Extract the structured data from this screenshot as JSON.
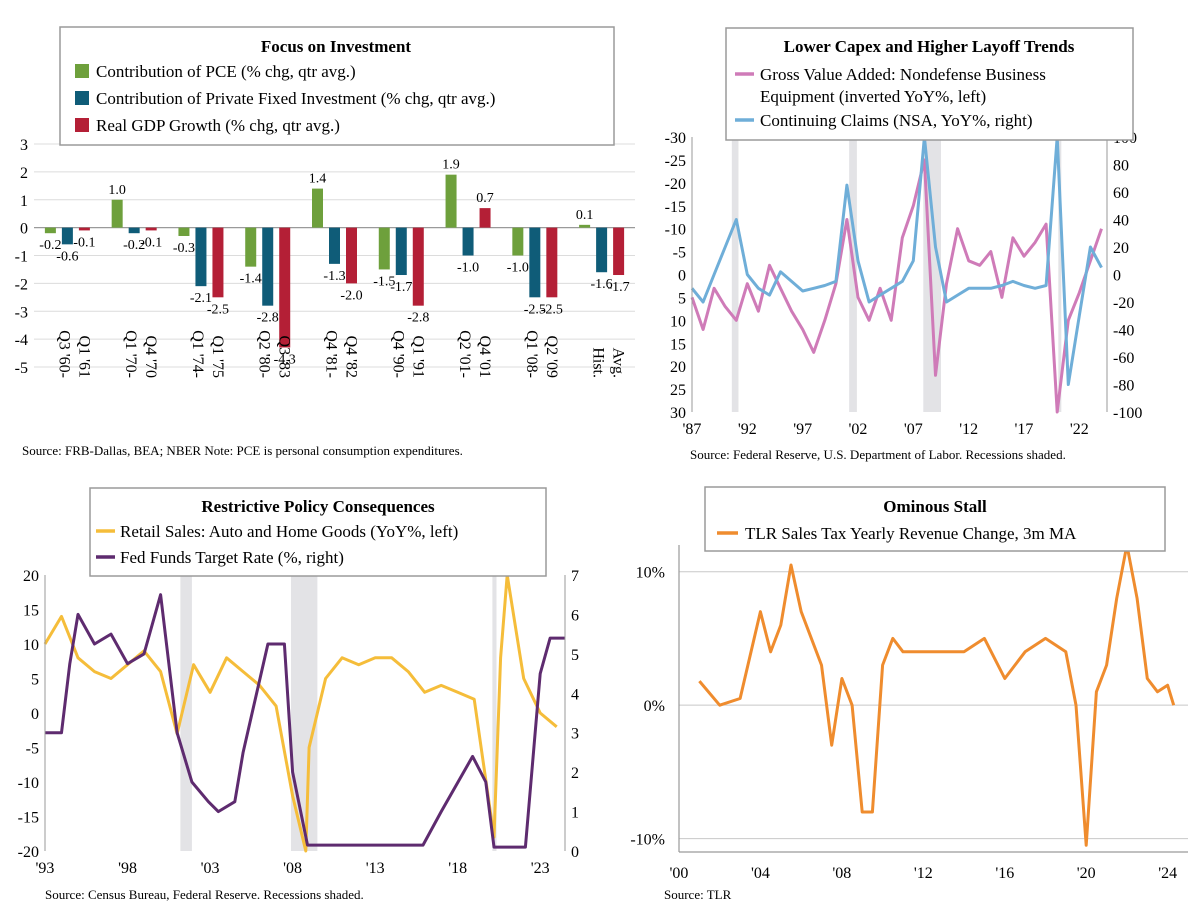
{
  "chart_data": [
    {
      "type": "bar",
      "title": "Focus on Investment",
      "series": [
        {
          "name": "Contribution of PCE (% chg, qtr avg.)",
          "color": "#6ea03c",
          "values": [
            -0.2,
            1.0,
            -0.3,
            -1.4,
            1.4,
            -1.5,
            1.9,
            -1.0,
            0.1
          ]
        },
        {
          "name": "Contribution of Private Fixed Investment (% chg, qtr avg.)",
          "color": "#0f5c78",
          "values": [
            -0.6,
            -0.2,
            -2.1,
            -2.8,
            -1.3,
            -1.7,
            -1.0,
            -2.5,
            -1.6
          ]
        },
        {
          "name": "Real GDP Growth (% chg, qtr avg.)",
          "color": "#b41f36",
          "values": [
            -0.1,
            -0.1,
            -2.5,
            -4.3,
            -2.0,
            -2.8,
            0.7,
            -2.5,
            -1.7
          ]
        }
      ],
      "categories": [
        [
          "Q3 '60-",
          "Q1 '61"
        ],
        [
          "Q1 '70-",
          "Q4 '70"
        ],
        [
          "Q1 '74-",
          "Q1 '75"
        ],
        [
          "Q2 '80-",
          "Q3 '83"
        ],
        [
          "Q4 '81-",
          "Q4 '82"
        ],
        [
          "Q4 '90-",
          "Q1 '91"
        ],
        [
          "Q2 '01-",
          "Q4 '01"
        ],
        [
          "Q1 '08-",
          "Q2 '09"
        ],
        [
          "Hist.",
          "Avg."
        ]
      ],
      "y_ticks": [
        "3",
        "2",
        "1",
        "0",
        "-1",
        "-2",
        "-3",
        "-4",
        "-5"
      ],
      "ylim": [
        -5,
        3
      ],
      "legend": "top",
      "source": "Source: FRB-Dallas, BEA; NBER Note: PCE is personal consumption expenditures."
    },
    {
      "type": "line",
      "title": "Lower Capex and Higher Layoff Trends",
      "series": [
        {
          "name": "Gross Value Added: Nondefense Business Equipment (inverted YoY%, left)",
          "legend_lines": [
            "Gross Value Added: Nondefense Business",
            "Equipment (inverted YoY%, left)"
          ],
          "color": "#cf7bb8",
          "axis": "left",
          "points": [
            [
              1987,
              5
            ],
            [
              1988,
              12
            ],
            [
              1989,
              3
            ],
            [
              1990,
              7
            ],
            [
              1991,
              10
            ],
            [
              1992,
              2
            ],
            [
              1993,
              8
            ],
            [
              1994,
              -2
            ],
            [
              1995,
              3
            ],
            [
              1996,
              8
            ],
            [
              1997,
              12
            ],
            [
              1998,
              17
            ],
            [
              1999,
              10
            ],
            [
              2000,
              2
            ],
            [
              2001,
              -12
            ],
            [
              2002,
              5
            ],
            [
              2003,
              10
            ],
            [
              2004,
              3
            ],
            [
              2005,
              10
            ],
            [
              2006,
              -8
            ],
            [
              2007,
              -15
            ],
            [
              2008,
              -25
            ],
            [
              2009,
              22
            ],
            [
              2010,
              2
            ],
            [
              2011,
              -10
            ],
            [
              2012,
              -3
            ],
            [
              2013,
              -2
            ],
            [
              2014,
              -5
            ],
            [
              2015,
              5
            ],
            [
              2016,
              -8
            ],
            [
              2017,
              -4
            ],
            [
              2018,
              -7
            ],
            [
              2019,
              -11
            ],
            [
              2020,
              30
            ],
            [
              2021,
              10
            ],
            [
              2022,
              4
            ],
            [
              2023,
              -3
            ],
            [
              2024,
              -10
            ]
          ]
        },
        {
          "name": "Continuing Claims (NSA, YoY%, right)",
          "color": "#6faed8",
          "axis": "right",
          "points": [
            [
              1987,
              -10
            ],
            [
              1988,
              -20
            ],
            [
              1989,
              0
            ],
            [
              1990,
              20
            ],
            [
              1991,
              40
            ],
            [
              1992,
              0
            ],
            [
              1993,
              -10
            ],
            [
              1994,
              -15
            ],
            [
              1995,
              2
            ],
            [
              1996,
              -5
            ],
            [
              1997,
              -12
            ],
            [
              1998,
              -10
            ],
            [
              1999,
              -8
            ],
            [
              2000,
              -5
            ],
            [
              2001,
              65
            ],
            [
              2002,
              10
            ],
            [
              2003,
              -20
            ],
            [
              2004,
              -15
            ],
            [
              2005,
              -10
            ],
            [
              2006,
              -5
            ],
            [
              2007,
              10
            ],
            [
              2008,
              100
            ],
            [
              2009,
              20
            ],
            [
              2010,
              -20
            ],
            [
              2011,
              -15
            ],
            [
              2012,
              -10
            ],
            [
              2013,
              -10
            ],
            [
              2014,
              -10
            ],
            [
              2015,
              -8
            ],
            [
              2016,
              -5
            ],
            [
              2017,
              -8
            ],
            [
              2018,
              -10
            ],
            [
              2019,
              -8
            ],
            [
              2020,
              200
            ],
            [
              2021,
              -80
            ],
            [
              2022,
              -30
            ],
            [
              2023,
              20
            ],
            [
              2024,
              5
            ]
          ]
        }
      ],
      "left_ticks": [
        "-30",
        "-25",
        "-20",
        "-15",
        "-10",
        "-5",
        "0",
        "5",
        "10",
        "15",
        "20",
        "25",
        "30"
      ],
      "right_ticks": [
        "100",
        "80",
        "60",
        "40",
        "20",
        "0",
        "-20",
        "-40",
        "-60",
        "-80",
        "-100"
      ],
      "x_ticks": [
        "'87",
        "'92",
        "'97",
        "'02",
        "'07",
        "'12",
        "'17",
        "'22"
      ],
      "ylim_left": [
        -30,
        30
      ],
      "ylim_right": [
        -100,
        100
      ],
      "left_axis_inverted": true,
      "xlim": [
        1987,
        2024.5
      ],
      "recessions": [
        [
          1990.6,
          1991.2
        ],
        [
          2001.2,
          2001.9
        ],
        [
          2007.9,
          2009.5
        ],
        [
          2020.1,
          2020.35
        ]
      ],
      "legend": "top",
      "source": "Source: Federal Reserve, U.S. Department of Labor. Recessions shaded."
    },
    {
      "type": "line",
      "title": "Restrictive Policy Consequences",
      "series": [
        {
          "name": "Retail Sales: Auto and Home Goods (YoY%, left)",
          "color": "#f5bd3a",
          "axis": "left",
          "points": [
            [
              1993,
              10
            ],
            [
              1994,
              14
            ],
            [
              1995,
              8
            ],
            [
              1996,
              6
            ],
            [
              1997,
              5
            ],
            [
              1998,
              7
            ],
            [
              1999,
              9
            ],
            [
              2000,
              6
            ],
            [
              2001,
              -3
            ],
            [
              2002,
              7
            ],
            [
              2003,
              3
            ],
            [
              2004,
              8
            ],
            [
              2005,
              6
            ],
            [
              2006,
              4
            ],
            [
              2007,
              1
            ],
            [
              2008,
              -12
            ],
            [
              2008.8,
              -20
            ],
            [
              2009,
              -5
            ],
            [
              2010,
              5
            ],
            [
              2011,
              8
            ],
            [
              2012,
              7
            ],
            [
              2013,
              8
            ],
            [
              2014,
              8
            ],
            [
              2015,
              6
            ],
            [
              2016,
              3
            ],
            [
              2017,
              4
            ],
            [
              2018,
              3
            ],
            [
              2019,
              2
            ],
            [
              2020.2,
              -18
            ],
            [
              2020.6,
              8
            ],
            [
              2021,
              20
            ],
            [
              2022,
              5
            ],
            [
              2023,
              0
            ],
            [
              2024,
              -2
            ]
          ]
        },
        {
          "name": "Fed Funds Target Rate (%, right)",
          "color": "#5e2b6f",
          "axis": "right",
          "points": [
            [
              1993,
              3
            ],
            [
              1994,
              3
            ],
            [
              1994.5,
              4.75
            ],
            [
              1995,
              6
            ],
            [
              1996,
              5.25
            ],
            [
              1997,
              5.5
            ],
            [
              1998,
              4.75
            ],
            [
              1999,
              5
            ],
            [
              2000,
              6.5
            ],
            [
              2001,
              3
            ],
            [
              2001.9,
              1.75
            ],
            [
              2002.9,
              1.25
            ],
            [
              2003.5,
              1
            ],
            [
              2004.5,
              1.25
            ],
            [
              2005,
              2.5
            ],
            [
              2006.5,
              5.25
            ],
            [
              2007.5,
              5.25
            ],
            [
              2008,
              2
            ],
            [
              2008.9,
              0.15
            ],
            [
              2015.9,
              0.15
            ],
            [
              2017,
              1
            ],
            [
              2018.9,
              2.4
            ],
            [
              2019.7,
              1.75
            ],
            [
              2020.2,
              0.1
            ],
            [
              2022.1,
              0.1
            ],
            [
              2023,
              4.5
            ],
            [
              2023.6,
              5.4
            ],
            [
              2024.5,
              5.4
            ]
          ]
        }
      ],
      "left_ticks": [
        "20",
        "15",
        "10",
        "5",
        "0",
        "-5",
        "-10",
        "-15",
        "-20"
      ],
      "right_ticks": [
        "7",
        "6",
        "5",
        "4",
        "3",
        "2",
        "1",
        "0"
      ],
      "x_ticks": [
        "'93",
        "'98",
        "'03",
        "'08",
        "'13",
        "'18",
        "'23"
      ],
      "ylim_left": [
        -20,
        20
      ],
      "ylim_right": [
        0,
        7
      ],
      "xlim": [
        1993,
        2024.5
      ],
      "recessions": [
        [
          2001.2,
          2001.9
        ],
        [
          2007.9,
          2009.5
        ],
        [
          2020.1,
          2020.35
        ]
      ],
      "legend": "top",
      "source": "Source: Census Bureau, Federal Reserve. Recessions shaded."
    },
    {
      "type": "line",
      "title": "Ominous Stall",
      "series": [
        {
          "name": "TLR Sales Tax Yearly Revenue Change, 3m MA",
          "color": "#ef8c2e",
          "axis": "left",
          "points": [
            [
              2001,
              1.8
            ],
            [
              2002,
              0
            ],
            [
              2003,
              0.5
            ],
            [
              2004,
              7
            ],
            [
              2004.5,
              4
            ],
            [
              2005,
              6
            ],
            [
              2005.5,
              10.5
            ],
            [
              2006,
              7
            ],
            [
              2007,
              3
            ],
            [
              2007.5,
              -3
            ],
            [
              2008,
              2
            ],
            [
              2008.5,
              0
            ],
            [
              2009,
              -8
            ],
            [
              2009.5,
              -8
            ],
            [
              2010,
              3
            ],
            [
              2010.5,
              5
            ],
            [
              2011,
              4
            ],
            [
              2012,
              4
            ],
            [
              2013,
              4
            ],
            [
              2014,
              4
            ],
            [
              2015,
              5
            ],
            [
              2016,
              2
            ],
            [
              2017,
              4
            ],
            [
              2018,
              5
            ],
            [
              2019,
              4
            ],
            [
              2019.5,
              0
            ],
            [
              2020,
              -10.5
            ],
            [
              2020.5,
              1
            ],
            [
              2021,
              3
            ],
            [
              2021.5,
              8
            ],
            [
              2022,
              13
            ],
            [
              2022.5,
              8
            ],
            [
              2023,
              2
            ],
            [
              2023.5,
              1
            ],
            [
              2024,
              1.5
            ],
            [
              2024.3,
              0
            ]
          ]
        }
      ],
      "y_ticks": [
        "10%",
        "0%",
        "-10%"
      ],
      "ylim": [
        -11,
        12
      ],
      "x_ticks": [
        "'00",
        "'04",
        "'08",
        "'12",
        "'16",
        "'20",
        "'24"
      ],
      "xlim": [
        2000,
        2025
      ],
      "legend": "top",
      "source": "Source: TLR"
    }
  ]
}
